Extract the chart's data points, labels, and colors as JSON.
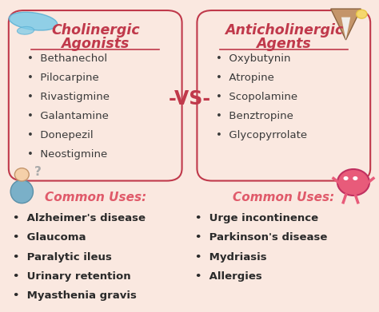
{
  "bg_color": "#fae8e0",
  "title_color": "#c0394b",
  "body_color": "#3a3a3a",
  "common_uses_color": "#e05a6a",
  "common_uses_body_color": "#2a2a2a",
  "vs_color": "#c0394b",
  "box_edge_color": "#c0394b",
  "left_title_line1": "Cholinergic",
  "left_title_line2": "Agonists",
  "left_drugs": [
    "Bethanechol",
    "Pilocarpine",
    "Rivastigmine",
    "Galantamine",
    "Donepezil",
    "Neostigmine"
  ],
  "left_common_uses_label": "Common Uses:",
  "left_common_uses": [
    "Alzheimer's disease",
    "Glaucoma",
    "Paralytic ileus",
    "Urinary retention",
    "Myasthenia gravis"
  ],
  "right_title_line1": "Anticholinergic",
  "right_title_line2": "Agents",
  "right_drugs": [
    "Oxybutynin",
    "Atropine",
    "Scopolamine",
    "Benztropine",
    "Glycopyrrolate"
  ],
  "right_common_uses_label": "Common Uses:",
  "right_common_uses": [
    "Urge incontinence",
    "Parkinson's disease",
    "Mydriasis",
    "Allergies"
  ],
  "vs_text": "-VS-",
  "figsize": [
    4.74,
    3.91
  ],
  "dpi": 100
}
